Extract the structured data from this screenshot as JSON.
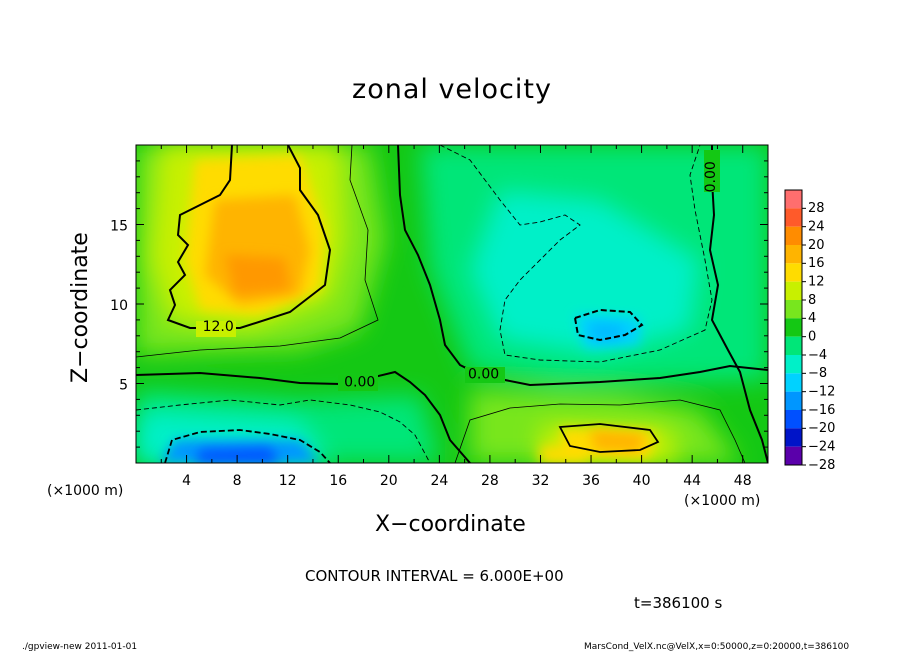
{
  "chart_data": {
    "type": "heatmap",
    "title": "zonal velocity",
    "xlabel": "X−coordinate",
    "ylabel": "Z−coordinate",
    "x_unit": "(×1000 m)",
    "xlim": [
      0,
      50
    ],
    "ylim": [
      0,
      20
    ],
    "x_ticks": [
      4,
      8,
      12,
      16,
      20,
      24,
      28,
      32,
      36,
      40,
      44,
      48
    ],
    "y_ticks": [
      5,
      10,
      15
    ],
    "contour_interval_text": "CONTOUR INTERVAL = 6.000E+00",
    "contour_labels": [
      {
        "text": "12.0",
        "x": 6.5,
        "z": 8.3
      },
      {
        "text": "0.00",
        "x": 17.7,
        "z": 4.8
      },
      {
        "text": "0.00",
        "x": 27.5,
        "z": 5.3
      },
      {
        "text": "0.00",
        "x": 45.8,
        "z": 18.0
      }
    ],
    "colorbar": {
      "levels": [
        28,
        24,
        20,
        16,
        12,
        8,
        4,
        0,
        -4,
        -8,
        -12,
        -16,
        -20,
        -24,
        -28
      ],
      "labels": [
        "28",
        "24",
        "20",
        "16",
        "12",
        "8",
        "4",
        "0",
        "−4",
        "−8",
        "−12",
        "−16",
        "−20",
        "−24",
        "−28"
      ],
      "colors": [
        "#ff6e6e",
        "#ff5a2a",
        "#ff8c00",
        "#ffb400",
        "#ffdc00",
        "#c8f000",
        "#78e61e",
        "#14c814",
        "#00e678",
        "#00f0c8",
        "#00d2ff",
        "#0096ff",
        "#0050ff",
        "#0014c8",
        "#5a00aa"
      ]
    },
    "field_features": [
      {
        "kind": "max",
        "x": 8,
        "z": 11.5,
        "value": 16
      },
      {
        "kind": "max",
        "x": 38,
        "z": 1.5,
        "value": 14
      },
      {
        "kind": "min",
        "x": 36,
        "z": 8.5,
        "value": -12
      },
      {
        "kind": "min",
        "x": 9,
        "z": 0.3,
        "value": -20
      }
    ]
  },
  "time_text": "t=386100 s",
  "footer": {
    "left": "./gpview-new   2011-01-01",
    "right": "MarsCond_VelX.nc@VelX,x=0:50000,z=0:20000,t=386100"
  }
}
